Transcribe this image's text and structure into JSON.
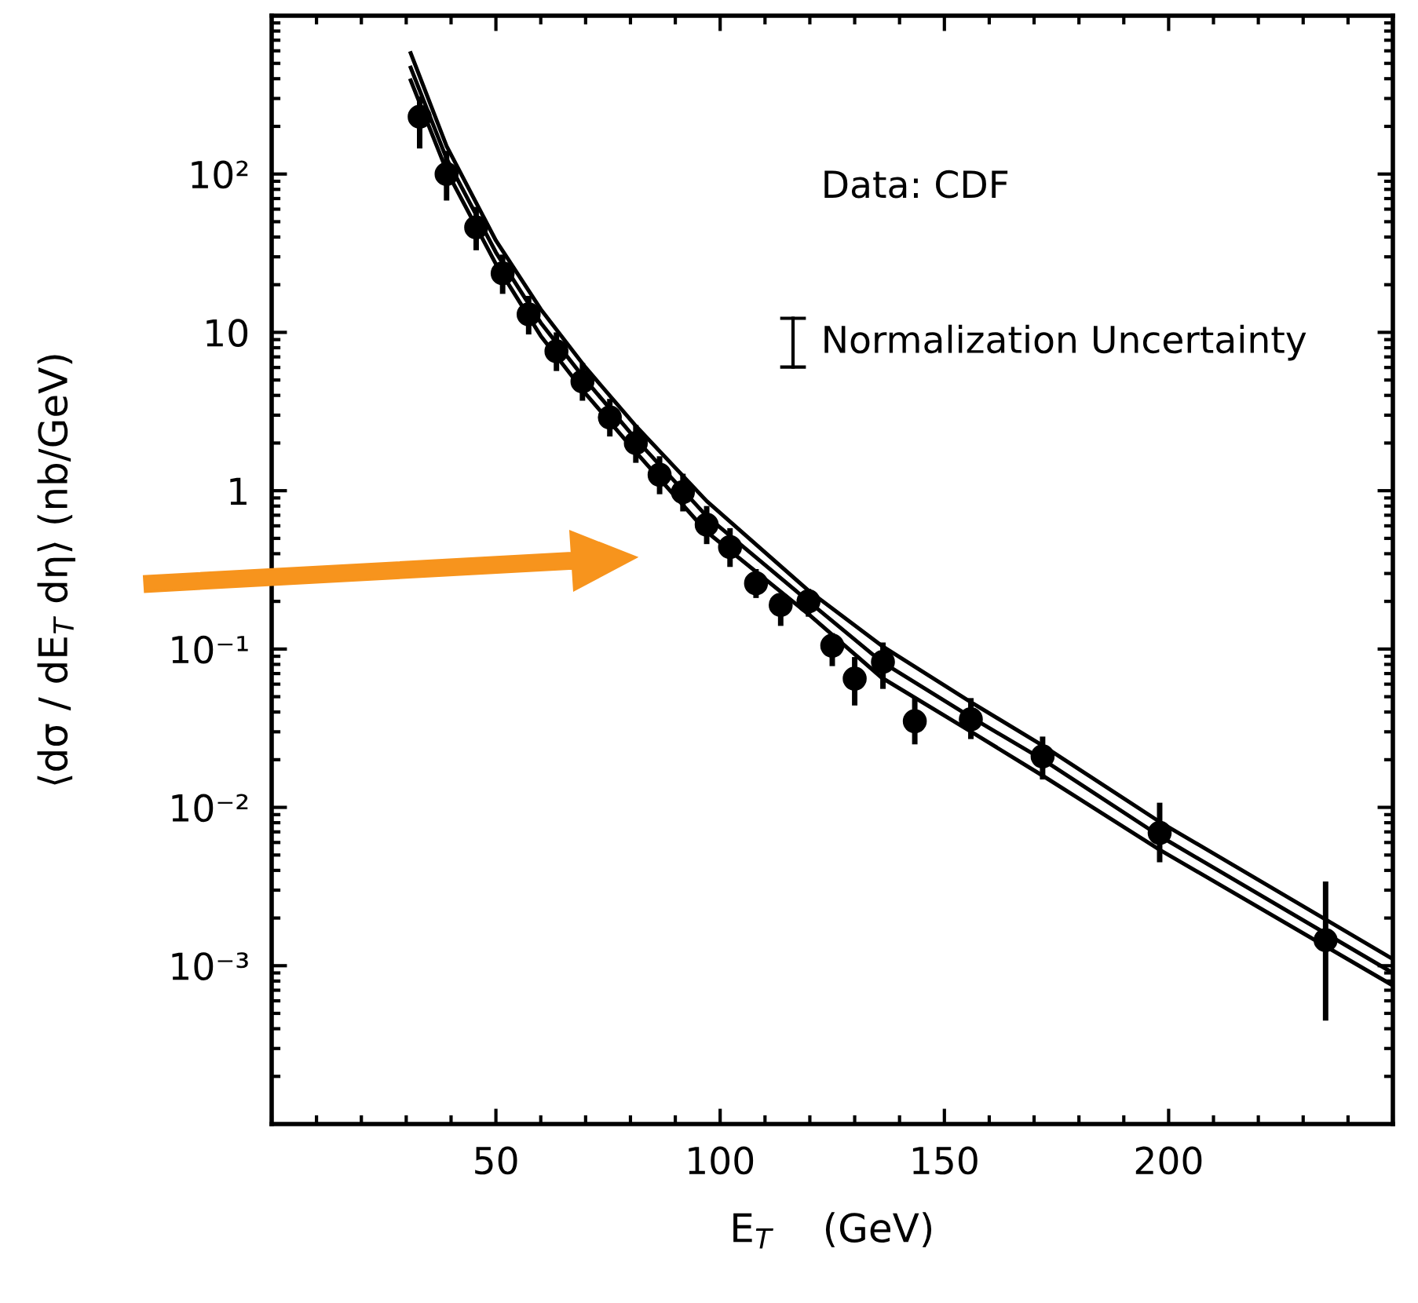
{
  "chart_data": {
    "type": "scatter",
    "xlabel": "E$_{T}$    (GeV)",
    "ylabel": "⟨dσ / dE$_{T}$ dη⟩ (nb/GeV)",
    "log": "y",
    "xlim": [
      0,
      250
    ],
    "ylim": [
      0.0001,
      1000
    ],
    "xticks": [
      50,
      100,
      150,
      200
    ],
    "yticks": [
      {
        "value": 0.001,
        "label": "10⁻³"
      },
      {
        "value": 0.01,
        "label": "10⁻²"
      },
      {
        "value": 0.1,
        "label": "10⁻¹"
      },
      {
        "value": 1,
        "label": "1"
      },
      {
        "value": 10,
        "label": "10"
      },
      {
        "value": 100,
        "label": "10²"
      }
    ],
    "grid": false,
    "annotations": [
      "Data: CDF",
      "Normalization Uncertainty"
    ],
    "series": [
      {
        "marker": "circle",
        "color": "#000000",
        "x": [
          33,
          39,
          45.6,
          51.5,
          57.3,
          63.5,
          69.3,
          75.4,
          81.2,
          86.5,
          91.7,
          97,
          102.2,
          108,
          113.5,
          119.7,
          125,
          130,
          136.3,
          143.4,
          155.9,
          171.9,
          198,
          235
        ],
        "values": [
          230,
          100,
          46,
          23.6,
          13,
          7.6,
          4.9,
          2.9,
          2.0,
          1.26,
          0.98,
          0.61,
          0.44,
          0.26,
          0.19,
          0.2,
          0.105,
          0.065,
          0.083,
          0.035,
          0.036,
          0.021,
          0.0069,
          0.00145
        ],
        "errors": [
          [
            145,
            309
          ],
          [
            68,
            140
          ],
          [
            33,
            62
          ],
          [
            17.5,
            31
          ],
          [
            9.7,
            17
          ],
          [
            5.7,
            10
          ],
          [
            3.7,
            6.4
          ],
          [
            2.2,
            3.8
          ],
          [
            1.5,
            2.6
          ],
          [
            0.95,
            1.65
          ],
          [
            0.74,
            1.28
          ],
          [
            0.46,
            0.8
          ],
          [
            0.33,
            0.58
          ],
          [
            0.21,
            0.32
          ],
          [
            0.14,
            0.22
          ],
          [
            0.16,
            0.24
          ],
          [
            0.078,
            0.126
          ],
          [
            0.044,
            0.089
          ],
          [
            0.056,
            0.11
          ],
          [
            0.025,
            0.049
          ],
          [
            0.027,
            0.049
          ],
          [
            0.015,
            0.028
          ],
          [
            0.0045,
            0.0107
          ],
          [
            0.00045,
            0.0034
          ]
        ]
      },
      {
        "type": "line",
        "marker": "none",
        "color": "#000000",
        "x": [
          31,
          39,
          50,
          60,
          70,
          81,
          97,
          119.7,
          136,
          156,
          172,
          198,
          250
        ],
        "values": [
          580,
          150,
          38,
          14,
          6,
          2.6,
          0.86,
          0.234,
          0.105,
          0.046,
          0.0245,
          0.0081,
          0.0011
        ]
      },
      {
        "type": "line",
        "marker": "none",
        "color": "#000000",
        "x": [
          31,
          39,
          50,
          60,
          70,
          81,
          97,
          119.7,
          136,
          156,
          172,
          198,
          250
        ],
        "values": [
          470,
          125,
          32,
          11.5,
          5,
          2.15,
          0.69,
          0.2,
          0.083,
          0.037,
          0.02,
          0.0066,
          0.0009
        ]
      },
      {
        "type": "line",
        "marker": "none",
        "color": "#000000",
        "x": [
          31,
          39,
          50,
          60,
          70,
          81,
          97,
          119.7,
          136,
          156,
          172,
          198,
          250
        ],
        "values": [
          390,
          105,
          27,
          9.5,
          4.1,
          1.78,
          0.55,
          0.166,
          0.066,
          0.03,
          0.0158,
          0.0054,
          0.00075
        ]
      }
    ]
  }
}
